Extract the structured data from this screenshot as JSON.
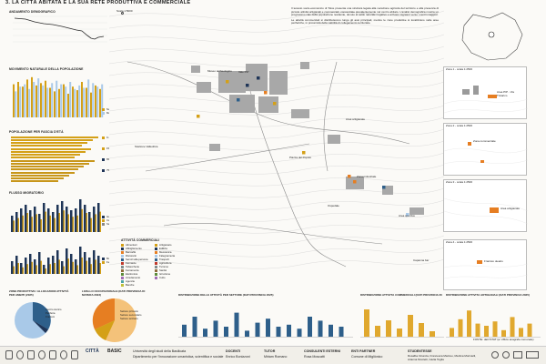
{
  "page_title": "3. LA CITTÀ ABITATA E LA SUA RETE PRODUTTIVA E COMMERCIALE",
  "left_column": {
    "panels": [
      {
        "title": "ANDAMENTO DEMOGRAFICO"
      },
      {
        "title": "MOVIMENTO NATURALE DELLA POPOLAZIONE",
        "legend": [
          "Nati",
          "Morti"
        ]
      },
      {
        "title": "POPOLAZIONE PER FASCIA D'ETÀ",
        "legend": [
          "0-14",
          "15-64",
          "65+",
          "75+"
        ]
      },
      {
        "title": "FLUSSO MIGRATORIO",
        "legend": [
          "Iscritti",
          "Cancellati",
          "Saldo"
        ]
      },
      {
        "title": "",
        "legend": [
          "Maschi",
          "Femmine"
        ]
      }
    ]
  },
  "bottom_left": {
    "pie1_title": "ZONE PRODUTTIVE / ALLOCAZIONI ATTIVITÀ PER AMBITI (2025)",
    "pie1_labels": [
      "Centro storico",
      "Periferia",
      "Frazioni"
    ],
    "pie2_title": "LIVELLO OCCUPAZIONALE (DATI PROVINCIA DI MATERA 2023)",
    "pie2_labels": [
      "Settore primario",
      "Settore secondario",
      "Settore terziario"
    ]
  },
  "map": {
    "scale_label": "Scala 1:5000",
    "labels": [
      "Museo archeologico",
      "Stazione Valledrica",
      "Area artigianale",
      "Piazza del Popolo",
      "Zona industriale",
      "Ospedale",
      "Area sportiva",
      "Capanna bar",
      "Vale PIP"
    ]
  },
  "legend": {
    "title": "ATTIVITÀ COMMERCIALI",
    "col1": [
      "Alimentari",
      "Abbigliamento",
      "Bar/caffè",
      "Ristoranti",
      "Servizi alla persona",
      "Farmacie",
      "Tabaccherie",
      "Ferramenta",
      "Elettronica",
      "Arredamento",
      "Agenzie",
      "Banche"
    ],
    "col2": [
      "Artigianato",
      "Edilizia",
      "Meccanica",
      "Falegnameria",
      "Trasporti",
      "Agricoltura",
      "Turismo",
      "Sanità",
      "Istruzione",
      "Culto"
    ]
  },
  "text_block": {
    "paragraph1": "Il tessuto socio-economico di Tolve presenta una struttura legata alla vocazione agricola del territorio e alla presenza di piccole attività artigianali e commerciali, concentrate prevalentemente nel centro abitato. L'analisi demografica mostra un progressivo calo della popolazione residente, dovuto al saldo naturale negativo e ai flussi migratori verso i centri maggiori.",
    "paragraph2": "Le attività commerciali si distribuiscono lungo gli assi principali, mentre le zone produttive si localizzano nelle aree periferiche, in prossimità della viabilità di collegamento territoriale."
  },
  "right_column": {
    "inset_labels": [
      "Zona 1 - scala 1:2500",
      "Zona 2 - scala 1:2500",
      "Zona 3 - scala 1:2500",
      "Zona 4 - scala 1:2500"
    ],
    "notes": [
      "Area PIP - Via Tricarico",
      "Zona commerciale",
      "Area artigianale",
      "Frantoio oleario"
    ]
  },
  "bottom_charts": {
    "chart1_title": "DISTRIBUZIONE DELLE ATTIVITÀ PER SETTORE (DATI PROVINCIA 2025)",
    "chart2_title": "DISTRIBUZIONE ATTIVITÀ COMMERCIALI (DATI PROVINCIA 2025)",
    "chart3_title": "DISTRIBUZIONE ATTIVITÀ ARTIGIANALI (DATI PROVINCIA 2025)",
    "source_note": "FONTE: dati ISTAT (a: Ufficio anagrafe comunale)"
  },
  "footer": {
    "university": "Università degli studi della Basilicata",
    "department": "Dipartimento per l'innovazione umanistica, scientifica e sociale",
    "docenti_label": "DOCENTI",
    "docenti": "Enrico Bonizzoni",
    "tutor_label": "TUTOR",
    "tutor": "Miriam Romano",
    "consulenti_label": "CONSULENTI ESTERNI",
    "consulenti": "Rosa Moscatti",
    "enti_label": "ENTI PARTNER",
    "enti": "Comune di Migliònico",
    "studenti_label": "STUDENTESSE",
    "studenti1": "Rosalba Cinanza, Francesca Mazzeo, Martina Morinielli,",
    "studenti2": "Arianna Nicoletti, Giulia Toglia",
    "logo_citta": "CITTÀ",
    "logo_basic": "BASIC"
  },
  "colors": {
    "gold": "#d4a017",
    "navy": "#1f3557",
    "orange": "#e67e22",
    "lightblue": "#a9c9e8",
    "blue": "#2e5f8a",
    "grid": "#ddd"
  }
}
